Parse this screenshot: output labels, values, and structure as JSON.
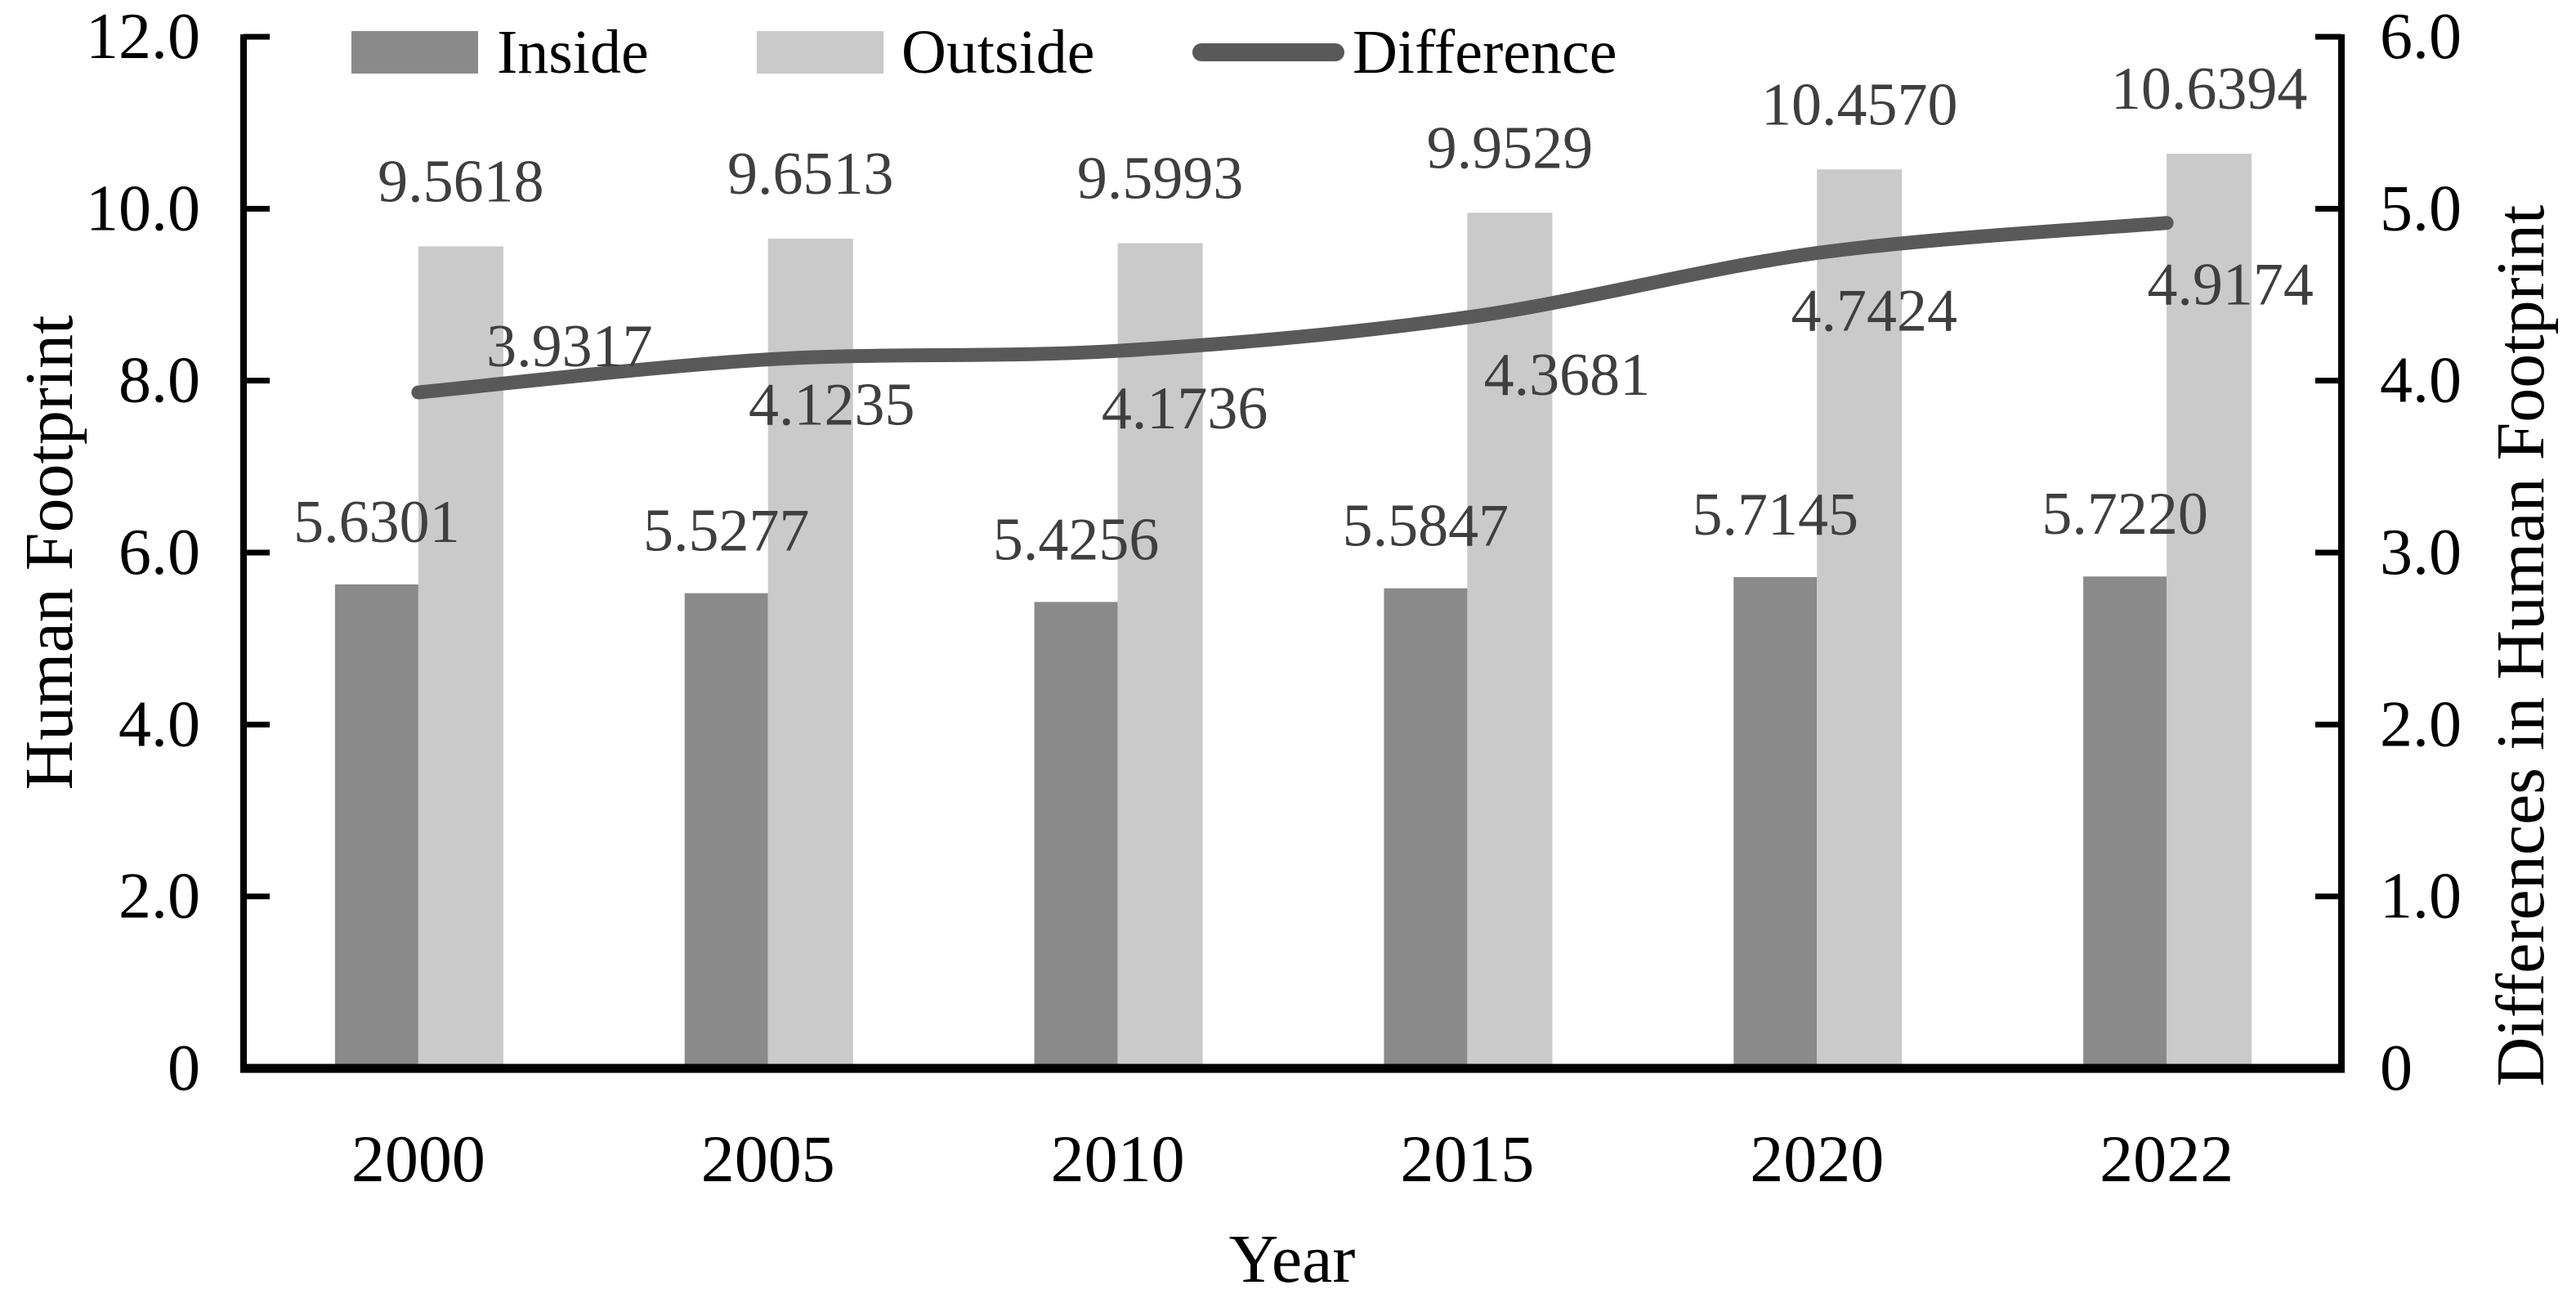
{
  "chart_data": {
    "type": "combo-bar-line",
    "categories": [
      "2000",
      "2005",
      "2010",
      "2015",
      "2020",
      "2022"
    ],
    "series": [
      {
        "name": "Inside",
        "type": "bar",
        "axis": "left",
        "color": "#8a8a8a",
        "values": [
          5.6301,
          5.5277,
          5.4256,
          5.5847,
          5.7145,
          5.722
        ],
        "labels": [
          "5.6301",
          "5.5277",
          "5.4256",
          "5.5847",
          "5.7145",
          "5.7220"
        ]
      },
      {
        "name": "Outside",
        "type": "bar",
        "axis": "left",
        "color": "#cacaca",
        "values": [
          9.5618,
          9.6513,
          9.5993,
          9.9529,
          10.457,
          10.6394
        ],
        "labels": [
          "9.5618",
          "9.6513",
          "9.5993",
          "9.9529",
          "10.4570",
          "10.6394"
        ]
      },
      {
        "name": "Difference",
        "type": "line",
        "axis": "right",
        "smooth": true,
        "color": "#595959",
        "values": [
          3.9317,
          4.1235,
          4.1736,
          4.3681,
          4.7424,
          4.9174
        ],
        "labels": [
          "3.9317",
          "4.1235",
          "4.1736",
          "4.3681",
          "4.7424",
          "4.9174"
        ],
        "label_positions": [
          "above",
          "below",
          "below",
          "below",
          "below",
          "below"
        ],
        "label_offsets": [
          [
            185,
            -32
          ],
          [
            78,
            80
          ],
          [
            82,
            95
          ],
          [
            122,
            95
          ],
          [
            70,
            95
          ],
          [
            78,
            100
          ]
        ]
      }
    ],
    "xlabel": "Year",
    "left_axis": {
      "title": "Human Footprint",
      "min": 0,
      "max": 12,
      "step": 2,
      "tick_labels": [
        "0",
        "2.0",
        "4.0",
        "6.0",
        "8.0",
        "10.0",
        "12.0"
      ]
    },
    "right_axis": {
      "title": "Differences in Human Footprint",
      "min": 0,
      "max": 6,
      "step": 1,
      "tick_labels": [
        "0",
        "1.0",
        "2.0",
        "3.0",
        "4.0",
        "5.0",
        "6.0"
      ]
    },
    "grid": false,
    "legend_position": "top",
    "colors": {
      "axis_line": "#000000",
      "data_label": "#3f3f3f",
      "inside_bar": "#8a8a8a",
      "outside_bar": "#cacaca",
      "difference_line": "#595959"
    }
  }
}
